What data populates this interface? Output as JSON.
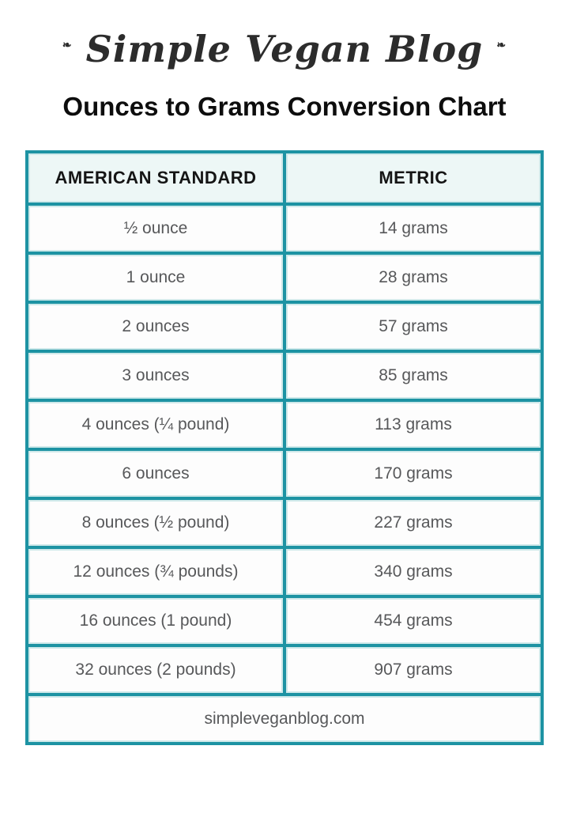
{
  "page": {
    "brand": "Simple Vegan Blog",
    "title": "Ounces to Grams Conversion Chart",
    "footer": "simpleveganblog.com"
  },
  "colors": {
    "accent_teal": "#1d93a3",
    "header_background": "#edf7f6",
    "cell_text": "#57585a",
    "title_text": "#0d0d0d"
  },
  "icons": {
    "leaf_decoration": "❧"
  },
  "table": {
    "headers": [
      "AMERICAN STANDARD",
      "METRIC"
    ],
    "rows": [
      {
        "standard": "½ ounce",
        "metric": "14 grams"
      },
      {
        "standard": "1 ounce",
        "metric": "28 grams"
      },
      {
        "standard": "2 ounces",
        "metric": "57 grams"
      },
      {
        "standard": "3 ounces",
        "metric": "85 grams"
      },
      {
        "standard": "4 ounces (¼ pound)",
        "metric": "113 grams"
      },
      {
        "standard": "6 ounces",
        "metric": "170 grams"
      },
      {
        "standard": "8 ounces (½ pound)",
        "metric": "227 grams"
      },
      {
        "standard": "12 ounces (¾ pounds)",
        "metric": "340 grams"
      },
      {
        "standard": "16 ounces (1 pound)",
        "metric": "454 grams"
      },
      {
        "standard": "32 ounces (2 pounds)",
        "metric": "907 grams"
      }
    ]
  },
  "chart_data": {
    "type": "table",
    "title": "Ounces to Grams Conversion Chart",
    "columns": [
      "AMERICAN STANDARD",
      "METRIC"
    ],
    "categories": [
      "½ ounce",
      "1 ounce",
      "2 ounces",
      "3 ounces",
      "4 ounces (¼ pound)",
      "6 ounces",
      "8 ounces (½ pound)",
      "12 ounces (¾ pounds)",
      "16 ounces (1 pound)",
      "32 ounces (2 pounds)"
    ],
    "values_grams": [
      14,
      28,
      57,
      85,
      113,
      170,
      227,
      340,
      454,
      907
    ],
    "source_label": "simpleveganblog.com"
  }
}
